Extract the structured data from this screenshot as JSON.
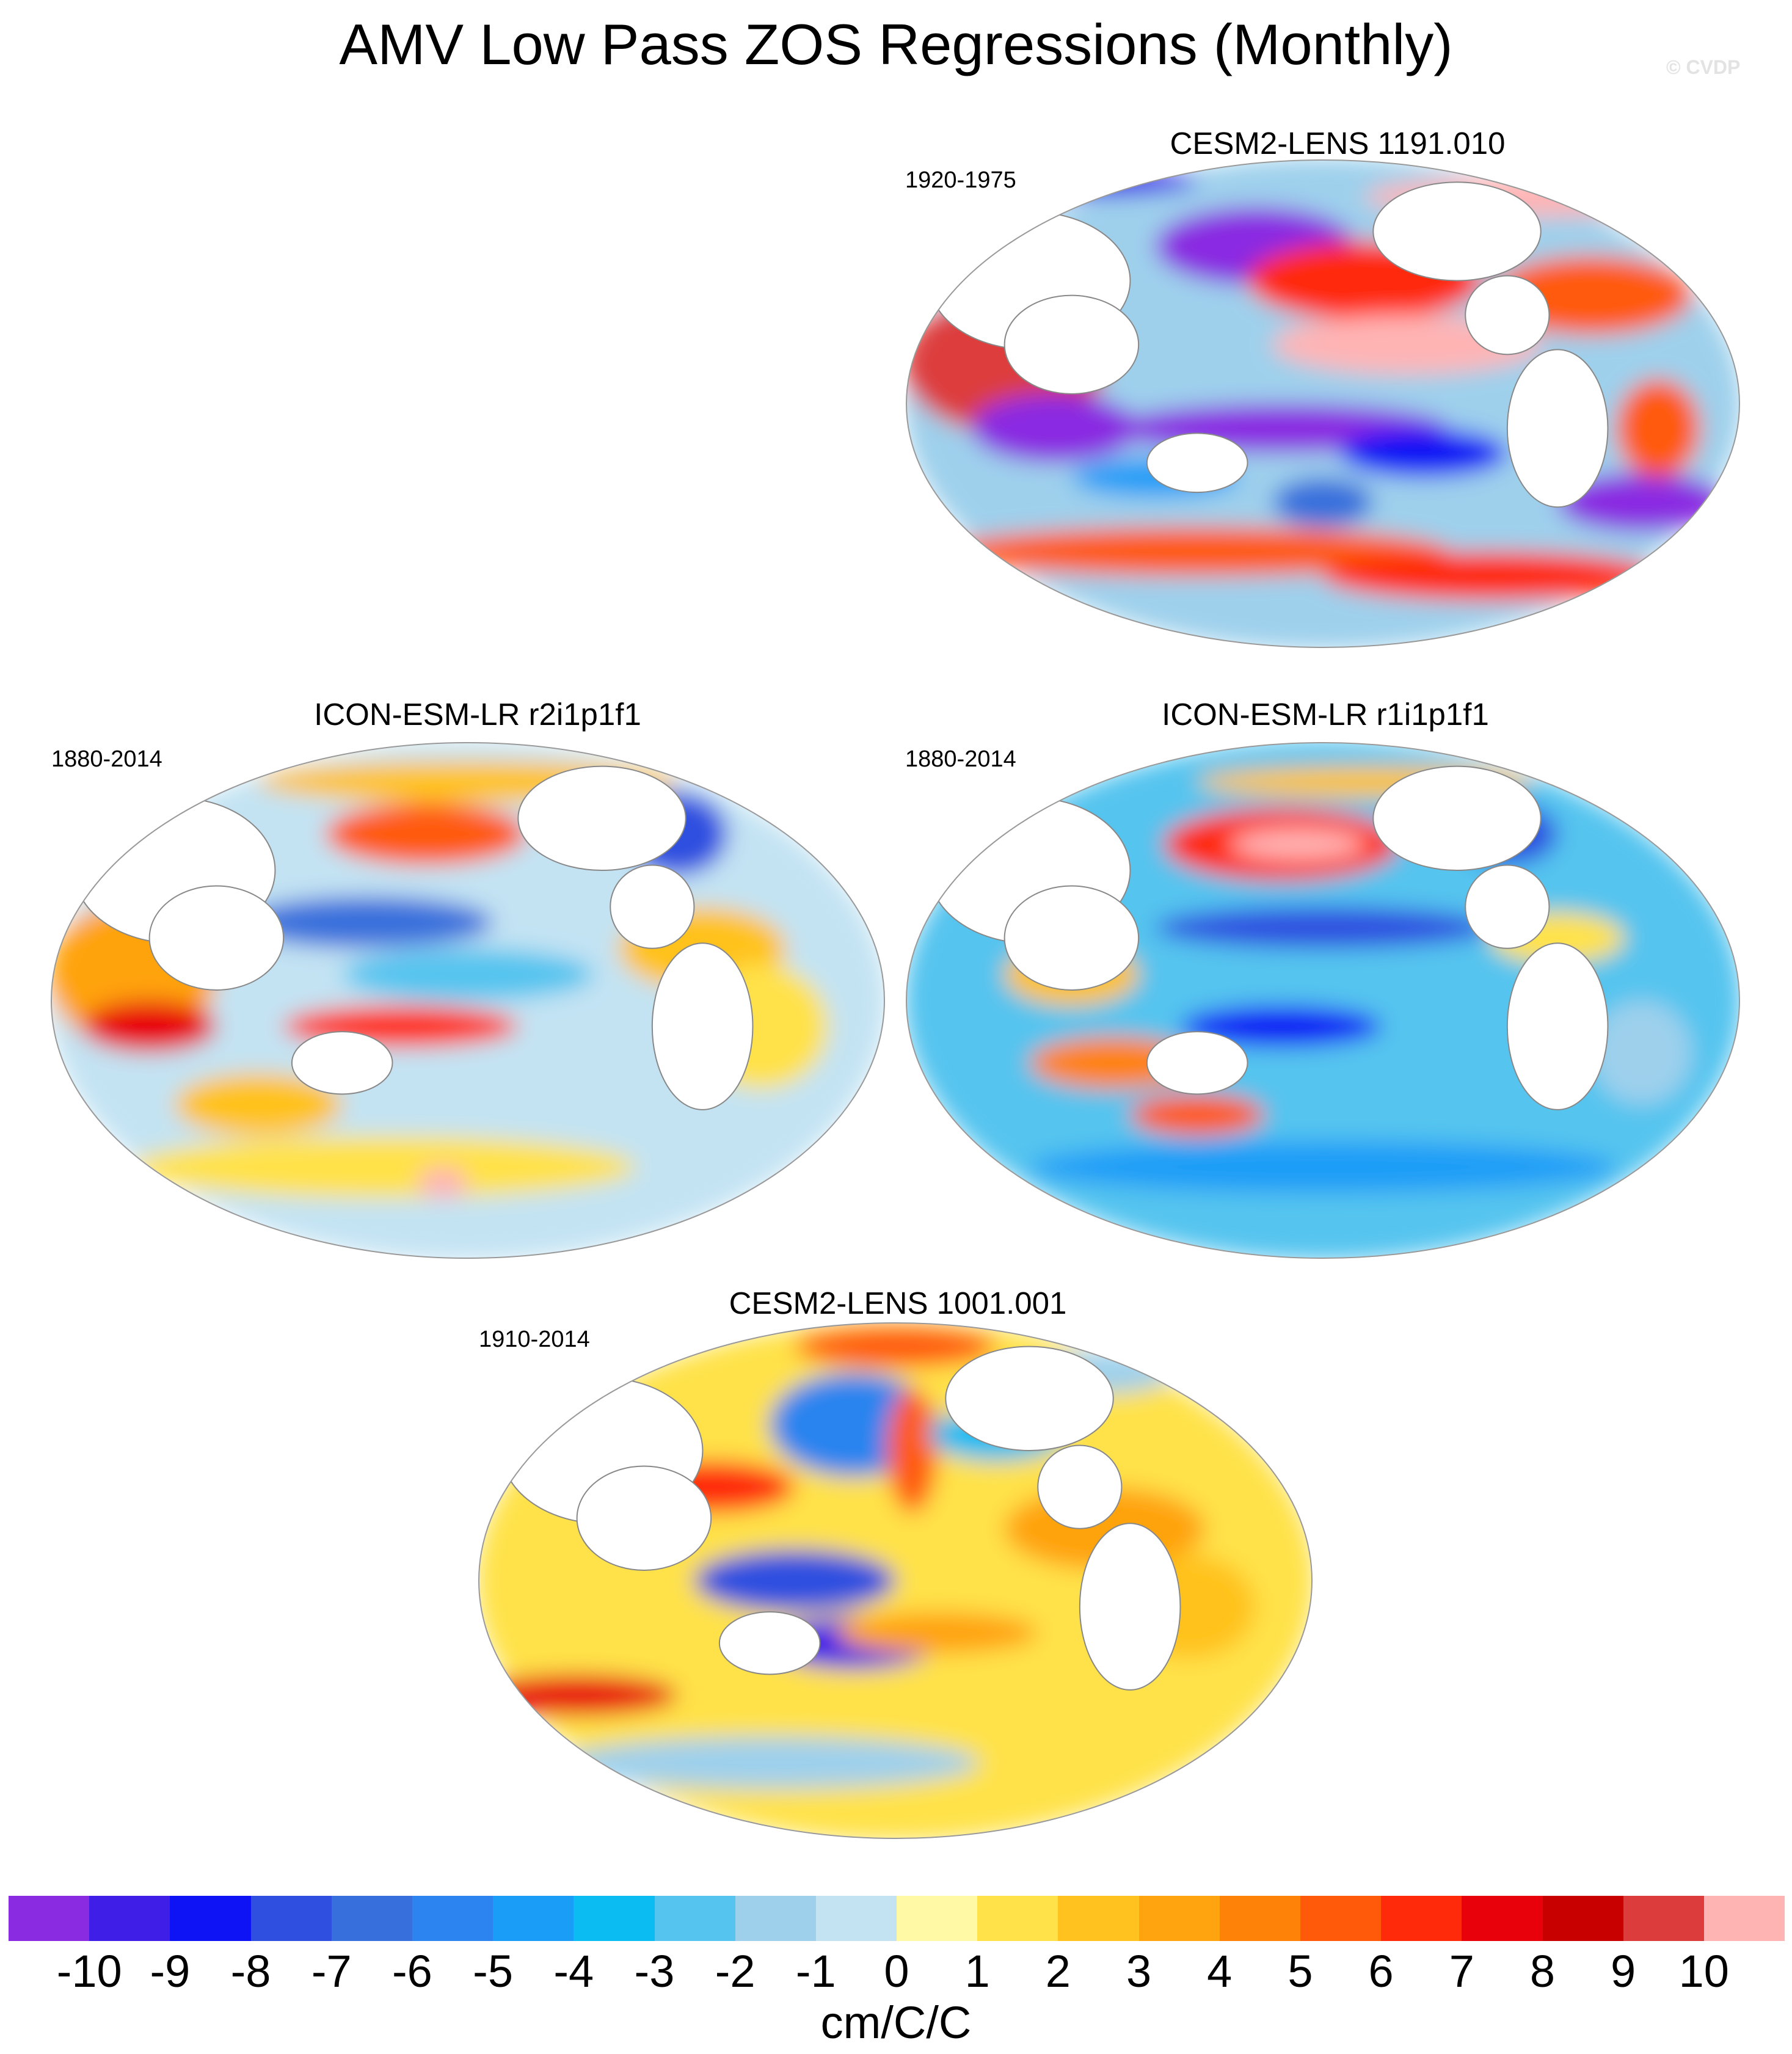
{
  "figure": {
    "title": "AMV Low Pass ZOS Regressions (Monthly)",
    "credit": "© CVDP"
  },
  "panels": [
    {
      "id": "top",
      "title": "CESM2-LENS 1191.010",
      "years": "1920-1975"
    },
    {
      "id": "mid-left",
      "title": "ICON-ESM-LR r2i1p1f1",
      "years": "1880-2014"
    },
    {
      "id": "mid-right",
      "title": "ICON-ESM-LR r1i1p1f1",
      "years": "1880-2014"
    },
    {
      "id": "bottom",
      "title": "CESM2-LENS 1001.001",
      "years": "1910-2014"
    }
  ],
  "colorbar": {
    "units": "cm/C/C",
    "tick_labels": [
      "-10",
      "-9",
      "-8",
      "-7",
      "-6",
      "-5",
      "-4",
      "-3",
      "-2",
      "-1",
      "0",
      "1",
      "2",
      "3",
      "4",
      "5",
      "6",
      "7",
      "8",
      "9",
      "10"
    ],
    "colors": [
      "#8a2be2",
      "#3f1fe8",
      "#0d13f5",
      "#2e4fe0",
      "#376fdc",
      "#2b84ef",
      "#1a9df7",
      "#0bbcf2",
      "#55c4ef",
      "#9ed0ec",
      "#c3e3f3",
      "#fff9a6",
      "#ffe24a",
      "#ffc21f",
      "#ffa30f",
      "#ff8208",
      "#ff5a0a",
      "#ff2a0a",
      "#e8000b",
      "#c80000",
      "#dd3c3c",
      "#ffb4b4"
    ]
  }
}
